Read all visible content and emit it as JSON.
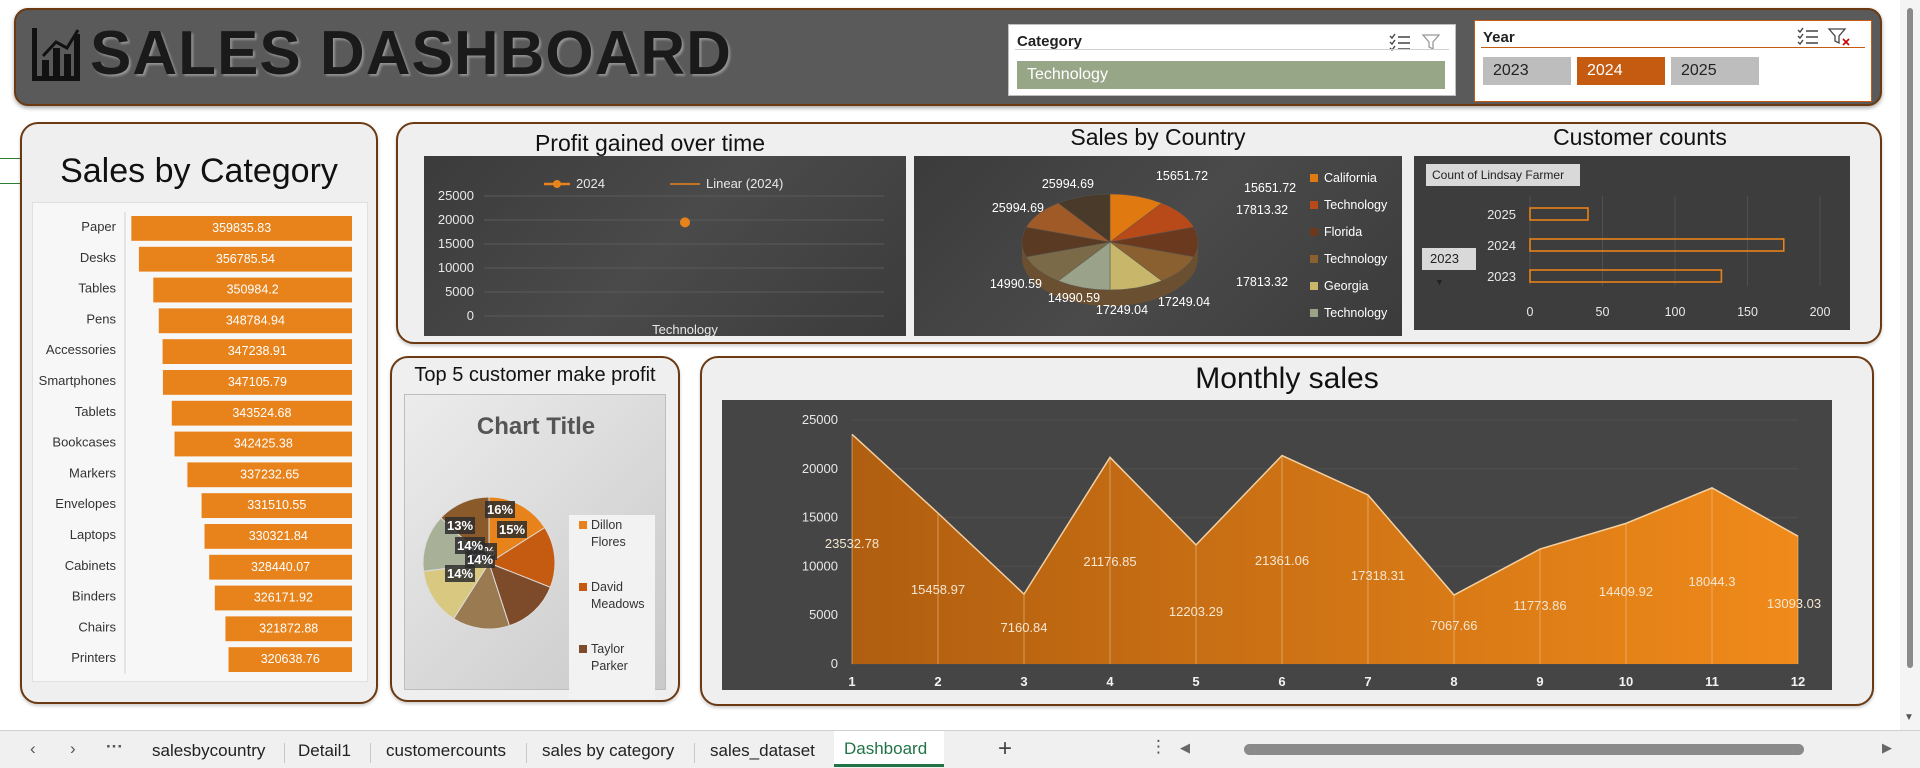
{
  "header": {
    "title": "SALES DASHBOARD"
  },
  "category_slicer": {
    "title": "Category",
    "selected": "Technology"
  },
  "year_slicer": {
    "title": "Year",
    "options": [
      "2023",
      "2024",
      "2025"
    ],
    "selected": "2024"
  },
  "colors": {
    "orange": "#e8821a",
    "dark_orange": "#c55a11",
    "header_bg": "#5a5a5a",
    "border": "#6b3a12",
    "slicer_selected_green": "#98a688"
  },
  "sheet_tabs": {
    "items": [
      "salesbycountry",
      "Detail1",
      "customercounts",
      "sales by category",
      "sales_dataset",
      "Dashboard"
    ],
    "active": "Dashboard"
  },
  "chart_data": [
    {
      "id": "sales_by_category",
      "type": "bar",
      "title": "Sales by Category",
      "categories": [
        "Paper",
        "Desks",
        "Tables",
        "Pens",
        "Accessories",
        "Smartphones",
        "Tablets",
        "Bookcases",
        "Markers",
        "Envelopes",
        "Laptops",
        "Cabinets",
        "Binders",
        "Chairs",
        "Printers"
      ],
      "values": [
        359835.83,
        356785.54,
        350984.2,
        348784.94,
        347238.91,
        347105.79,
        343524.68,
        342425.38,
        337232.65,
        331510.55,
        330321.84,
        328440.07,
        326171.92,
        321872.88,
        320638.76
      ],
      "labels": [
        "359835.83",
        "356785.54",
        "350984.2",
        "348784.94",
        "347238.91",
        "347105.79",
        "343524.68",
        "342425.38",
        "337232.65",
        "331510.55",
        "330321.84",
        "328440.07",
        "326171.92",
        "321872.88",
        "320638.76"
      ],
      "orientation": "horizontal"
    },
    {
      "id": "profit_over_time",
      "type": "line",
      "title": "Profit gained over time",
      "categories": [
        "Technology"
      ],
      "series": [
        {
          "name": "2024",
          "values": [
            19500
          ]
        }
      ],
      "trendline": "Linear (2024)",
      "yticks": [
        "0",
        "5000",
        "10000",
        "15000",
        "20000",
        "25000"
      ],
      "ylim": [
        0,
        25000
      ]
    },
    {
      "id": "sales_by_country",
      "type": "pie",
      "title": "Sales by Country",
      "legend": [
        "California",
        "Technology",
        "Florida",
        "Technology",
        "Georgia",
        "Technology"
      ],
      "slice_labels": [
        "15651.72",
        "15651.72",
        "17813.32",
        "17813.32",
        "17249.04",
        "17249.04",
        "14990.59",
        "14990.59",
        "25994.69",
        "25994.69"
      ],
      "legend_placement": "right"
    },
    {
      "id": "customer_counts",
      "type": "bar",
      "title": "Customer counts",
      "field_button": "Count of Lindsay Farmer",
      "filter_value": "2023",
      "categories": [
        "2025",
        "2024",
        "2023"
      ],
      "values": [
        40,
        175,
        132
      ],
      "xticks": [
        "0",
        "50",
        "100",
        "150",
        "200"
      ],
      "xlim": [
        0,
        200
      ],
      "orientation": "horizontal"
    },
    {
      "id": "top5_customers",
      "type": "pie",
      "heading": "Top 5 customer make profit",
      "title": "Chart Title",
      "legend": [
        "Dillon Flores",
        "David Meadows",
        "Taylor Parker"
      ],
      "values": [
        16,
        15,
        14,
        14,
        14,
        14,
        13
      ],
      "labels": [
        "16%",
        "15%",
        "14%",
        "14%",
        "14%",
        "14%",
        "13%"
      ]
    },
    {
      "id": "monthly_sales",
      "type": "area",
      "title": "Monthly sales",
      "x": [
        1,
        2,
        3,
        4,
        5,
        6,
        7,
        8,
        9,
        10,
        11,
        12
      ],
      "values": [
        23532.78,
        15458.97,
        7160.84,
        21176.85,
        12203.29,
        21361.06,
        17318.31,
        7067.66,
        11773.86,
        14409.92,
        18044.3,
        13093.03
      ],
      "labels": [
        "23532.78",
        "15458.97",
        "7160.84",
        "21176.85",
        "12203.29",
        "21361.06",
        "17318.31",
        "7067.66",
        "11773.86",
        "14409.92",
        "18044.3",
        "13093.03"
      ],
      "yticks": [
        "0",
        "5000",
        "10000",
        "15000",
        "20000",
        "25000"
      ],
      "ylim": [
        0,
        25000
      ]
    }
  ]
}
